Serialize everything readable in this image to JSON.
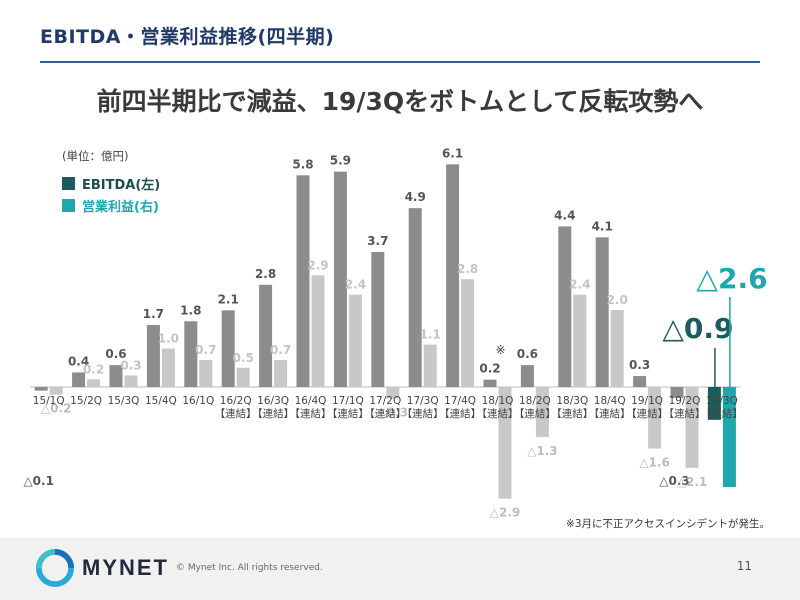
{
  "header": {
    "section_title": "EBITDA・営業利益推移(四半期)",
    "headline": "前四半期比で減益、19/3Qをボトムとして反転攻勢へ"
  },
  "legend": {
    "unit": "(単位：億円)",
    "ebitda_label": "EBITDA(左)",
    "op_label": "営業利益(右)"
  },
  "chart_data": {
    "type": "bar",
    "categories": [
      "15/1Q",
      "15/2Q",
      "15/3Q",
      "15/4Q",
      "16/1Q",
      "16/2Q",
      "16/3Q",
      "16/4Q",
      "17/1Q",
      "17/2Q",
      "17/3Q",
      "17/4Q",
      "18/1Q",
      "18/2Q",
      "18/3Q",
      "18/4Q",
      "19/1Q",
      "19/2Q",
      "19/3Q"
    ],
    "sublabels": [
      "",
      "",
      "",
      "",
      "",
      "【連結】",
      "【連結】",
      "【連結】",
      "【連結】",
      "【連結】",
      "【連結】",
      "【連結】",
      "【連結】",
      "【連結】",
      "【連結】",
      "【連結】",
      "【連結】",
      "【連結】",
      "【連結】"
    ],
    "series": [
      {
        "name": "EBITDA(左)",
        "color": "#8c8c8c",
        "highlight_color": "#1d5c5c",
        "values": [
          -0.1,
          0.4,
          0.6,
          1.7,
          1.8,
          2.1,
          2.8,
          5.8,
          5.9,
          3.7,
          4.9,
          6.1,
          0.2,
          0.6,
          4.4,
          4.1,
          0.3,
          -0.3,
          -0.9
        ],
        "labels": [
          "△0.1",
          "0.4",
          "0.6",
          "1.7",
          "1.8",
          "2.1",
          "2.8",
          "5.8",
          "5.9",
          "3.7",
          "4.9",
          "6.1",
          "0.2",
          "0.6",
          "4.4",
          "4.1",
          "0.3",
          "△0.3",
          "△0.9"
        ]
      },
      {
        "name": "営業利益(右)",
        "color": "#c8c8c8",
        "highlight_color": "#1fa7ad",
        "values": [
          -0.2,
          0.2,
          0.3,
          1.0,
          0.7,
          0.5,
          0.7,
          2.9,
          2.4,
          -0.3,
          1.1,
          2.8,
          -2.9,
          -1.3,
          2.4,
          2.0,
          -1.6,
          -2.1,
          -2.6
        ],
        "labels": [
          "△0.2",
          "0.2",
          "0.3",
          "1.0",
          "0.7",
          "0.5",
          "0.7",
          "2.9",
          "2.4",
          "△0.3",
          "1.1",
          "2.8",
          "△2.9",
          "△1.3",
          "2.4",
          "2.0",
          "△1.6",
          "△2.1",
          "△2.6"
        ]
      }
    ],
    "annotation": "※",
    "ylim": [
      -3,
      6.5
    ],
    "colors": {
      "ebitda": "#1d5c5c",
      "operating_profit": "#1fa7ad"
    }
  },
  "footnote": "※3月に不正アクセスインシデントが発生。",
  "footer": {
    "logo_text": "MYNET",
    "copyright": "© Mynet Inc. All rights reserved.",
    "page_number": "11"
  }
}
